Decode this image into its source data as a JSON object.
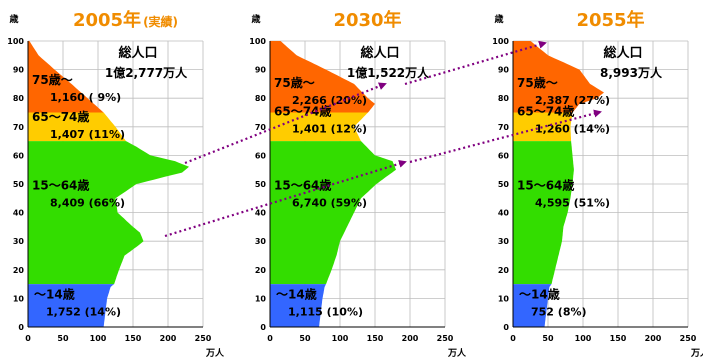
{
  "ui": {
    "y_unit": "歳",
    "x_unit": "万人",
    "total_label": "総人口",
    "x_ticks": [
      "0",
      "50",
      "100",
      "150",
      "200",
      "250"
    ],
    "y_ticks": [
      "0",
      "10",
      "20",
      "30",
      "40",
      "50",
      "60",
      "70",
      "80",
      "90",
      "100"
    ],
    "colors": {
      "age_75_plus": "#ff6600",
      "age_65_74": "#ffcc00",
      "age_15_64": "#33dd00",
      "age_0_14": "#3366ff",
      "grid": "#bdbdbd",
      "title": "#f08c00",
      "arrow": "#800080"
    }
  },
  "chart_data": [
    {
      "type": "area",
      "chart_kind": "population pyramid (one side)",
      "title": "2005年",
      "subtitle": "(実績)",
      "xlim": [
        0,
        250
      ],
      "ylim": [
        0,
        100
      ],
      "grid": true,
      "total": "1億2,777万人",
      "groups": [
        {
          "name": "75歳～",
          "value_label": "1,160 ( 9%)",
          "age_range": [
            75,
            100
          ]
        },
        {
          "name": "65～74歳",
          "value_label": "1,407 (11%)",
          "age_range": [
            65,
            75
          ]
        },
        {
          "name": "15～64歳",
          "value_label": "8,409 (66%)",
          "age_range": [
            15,
            65
          ]
        },
        {
          "name": "～14歳",
          "value_label": "1,752 (14%)",
          "age_range": [
            0,
            15
          ]
        }
      ],
      "profile_age": [
        0,
        10,
        14,
        15,
        20,
        25,
        28,
        30,
        33,
        35,
        40,
        45,
        50,
        54,
        56,
        58,
        60,
        63,
        65,
        70,
        75,
        80,
        85,
        90,
        95,
        100
      ],
      "profile_pop": [
        108,
        113,
        118,
        123,
        130,
        138,
        155,
        165,
        160,
        150,
        128,
        125,
        155,
        220,
        230,
        210,
        175,
        155,
        140,
        125,
        108,
        85,
        62,
        38,
        15,
        2
      ]
    },
    {
      "type": "area",
      "chart_kind": "population pyramid (one side)",
      "title": "2030年",
      "subtitle": "",
      "xlim": [
        0,
        250
      ],
      "ylim": [
        0,
        100
      ],
      "grid": true,
      "total": "1億1,522万人",
      "groups": [
        {
          "name": "75歳～",
          "value_label": "2,266 (20%)",
          "age_range": [
            75,
            100
          ]
        },
        {
          "name": "65～74歳",
          "value_label": "1,401 (12%)",
          "age_range": [
            65,
            75
          ]
        },
        {
          "name": "15～64歳",
          "value_label": "6,740 (59%)",
          "age_range": [
            15,
            65
          ]
        },
        {
          "name": "～14歳",
          "value_label": "1,115 (10%)",
          "age_range": [
            0,
            15
          ]
        }
      ],
      "profile_age": [
        0,
        10,
        14,
        15,
        20,
        25,
        30,
        35,
        40,
        45,
        50,
        55,
        58,
        60,
        65,
        70,
        75,
        78,
        80,
        85,
        90,
        95,
        100
      ],
      "profile_pop": [
        70,
        75,
        78,
        80,
        88,
        95,
        100,
        110,
        120,
        130,
        152,
        180,
        175,
        150,
        130,
        120,
        140,
        150,
        140,
        120,
        80,
        38,
        15
      ]
    },
    {
      "type": "area",
      "chart_kind": "population pyramid (one side)",
      "title": "2055年",
      "subtitle": "",
      "xlim": [
        0,
        250
      ],
      "ylim": [
        0,
        100
      ],
      "grid": true,
      "total": "8,993万人",
      "groups": [
        {
          "name": "75歳～",
          "value_label": "2,387 (27%)",
          "age_range": [
            75,
            100
          ]
        },
        {
          "name": "65～74歳",
          "value_label": "1,260 (14%)",
          "age_range": [
            65,
            75
          ]
        },
        {
          "name": "15～64歳",
          "value_label": "4,595 (51%)",
          "age_range": [
            15,
            65
          ]
        },
        {
          "name": "～14歳",
          "value_label": "752 (8%)",
          "age_range": [
            0,
            15
          ]
        }
      ],
      "profile_age": [
        0,
        10,
        14,
        15,
        20,
        25,
        30,
        35,
        40,
        45,
        50,
        55,
        60,
        65,
        70,
        75,
        78,
        80,
        82,
        85,
        90,
        95,
        100
      ],
      "profile_pop": [
        45,
        50,
        52,
        55,
        60,
        65,
        70,
        72,
        78,
        82,
        85,
        87,
        85,
        83,
        82,
        85,
        95,
        120,
        130,
        110,
        95,
        50,
        25
      ]
    }
  ]
}
